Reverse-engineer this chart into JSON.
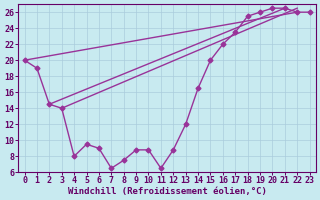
{
  "title": "",
  "xlabel": "Windchill (Refroidissement éolien,°C)",
  "ylabel": "",
  "background_color": "#c8eaf0",
  "line_color": "#993399",
  "grid_color": "#aaccdd",
  "x_data": [
    0,
    1,
    2,
    3,
    4,
    5,
    6,
    7,
    8,
    9,
    10,
    11,
    12,
    13,
    14,
    15,
    16,
    17,
    18,
    19,
    20,
    21,
    22,
    23
  ],
  "y_data_main": [
    20.0,
    19.0,
    14.5,
    14.0,
    8.0,
    9.5,
    9.0,
    6.5,
    7.5,
    8.8,
    8.8,
    6.5,
    8.8,
    12.0,
    16.5,
    20.0,
    22.0,
    23.5,
    25.5,
    26.0,
    26.5,
    26.5,
    26.0,
    26.0
  ],
  "straight_lines": [
    [
      0,
      20.0,
      22,
      26.0
    ],
    [
      2,
      14.5,
      21,
      26.5
    ],
    [
      3,
      14.0,
      22,
      26.5
    ]
  ],
  "ylim": [
    6,
    27
  ],
  "yticks": [
    6,
    8,
    10,
    12,
    14,
    16,
    18,
    20,
    22,
    24,
    26
  ],
  "xlim": [
    -0.5,
    23.5
  ],
  "xticks": [
    0,
    1,
    2,
    3,
    4,
    5,
    6,
    7,
    8,
    9,
    10,
    11,
    12,
    13,
    14,
    15,
    16,
    17,
    18,
    19,
    20,
    21,
    22,
    23
  ],
  "marker": "D",
  "marker_size": 2.5,
  "line_width": 1.0,
  "font_size": 6,
  "xlabel_fontsize": 6.5
}
